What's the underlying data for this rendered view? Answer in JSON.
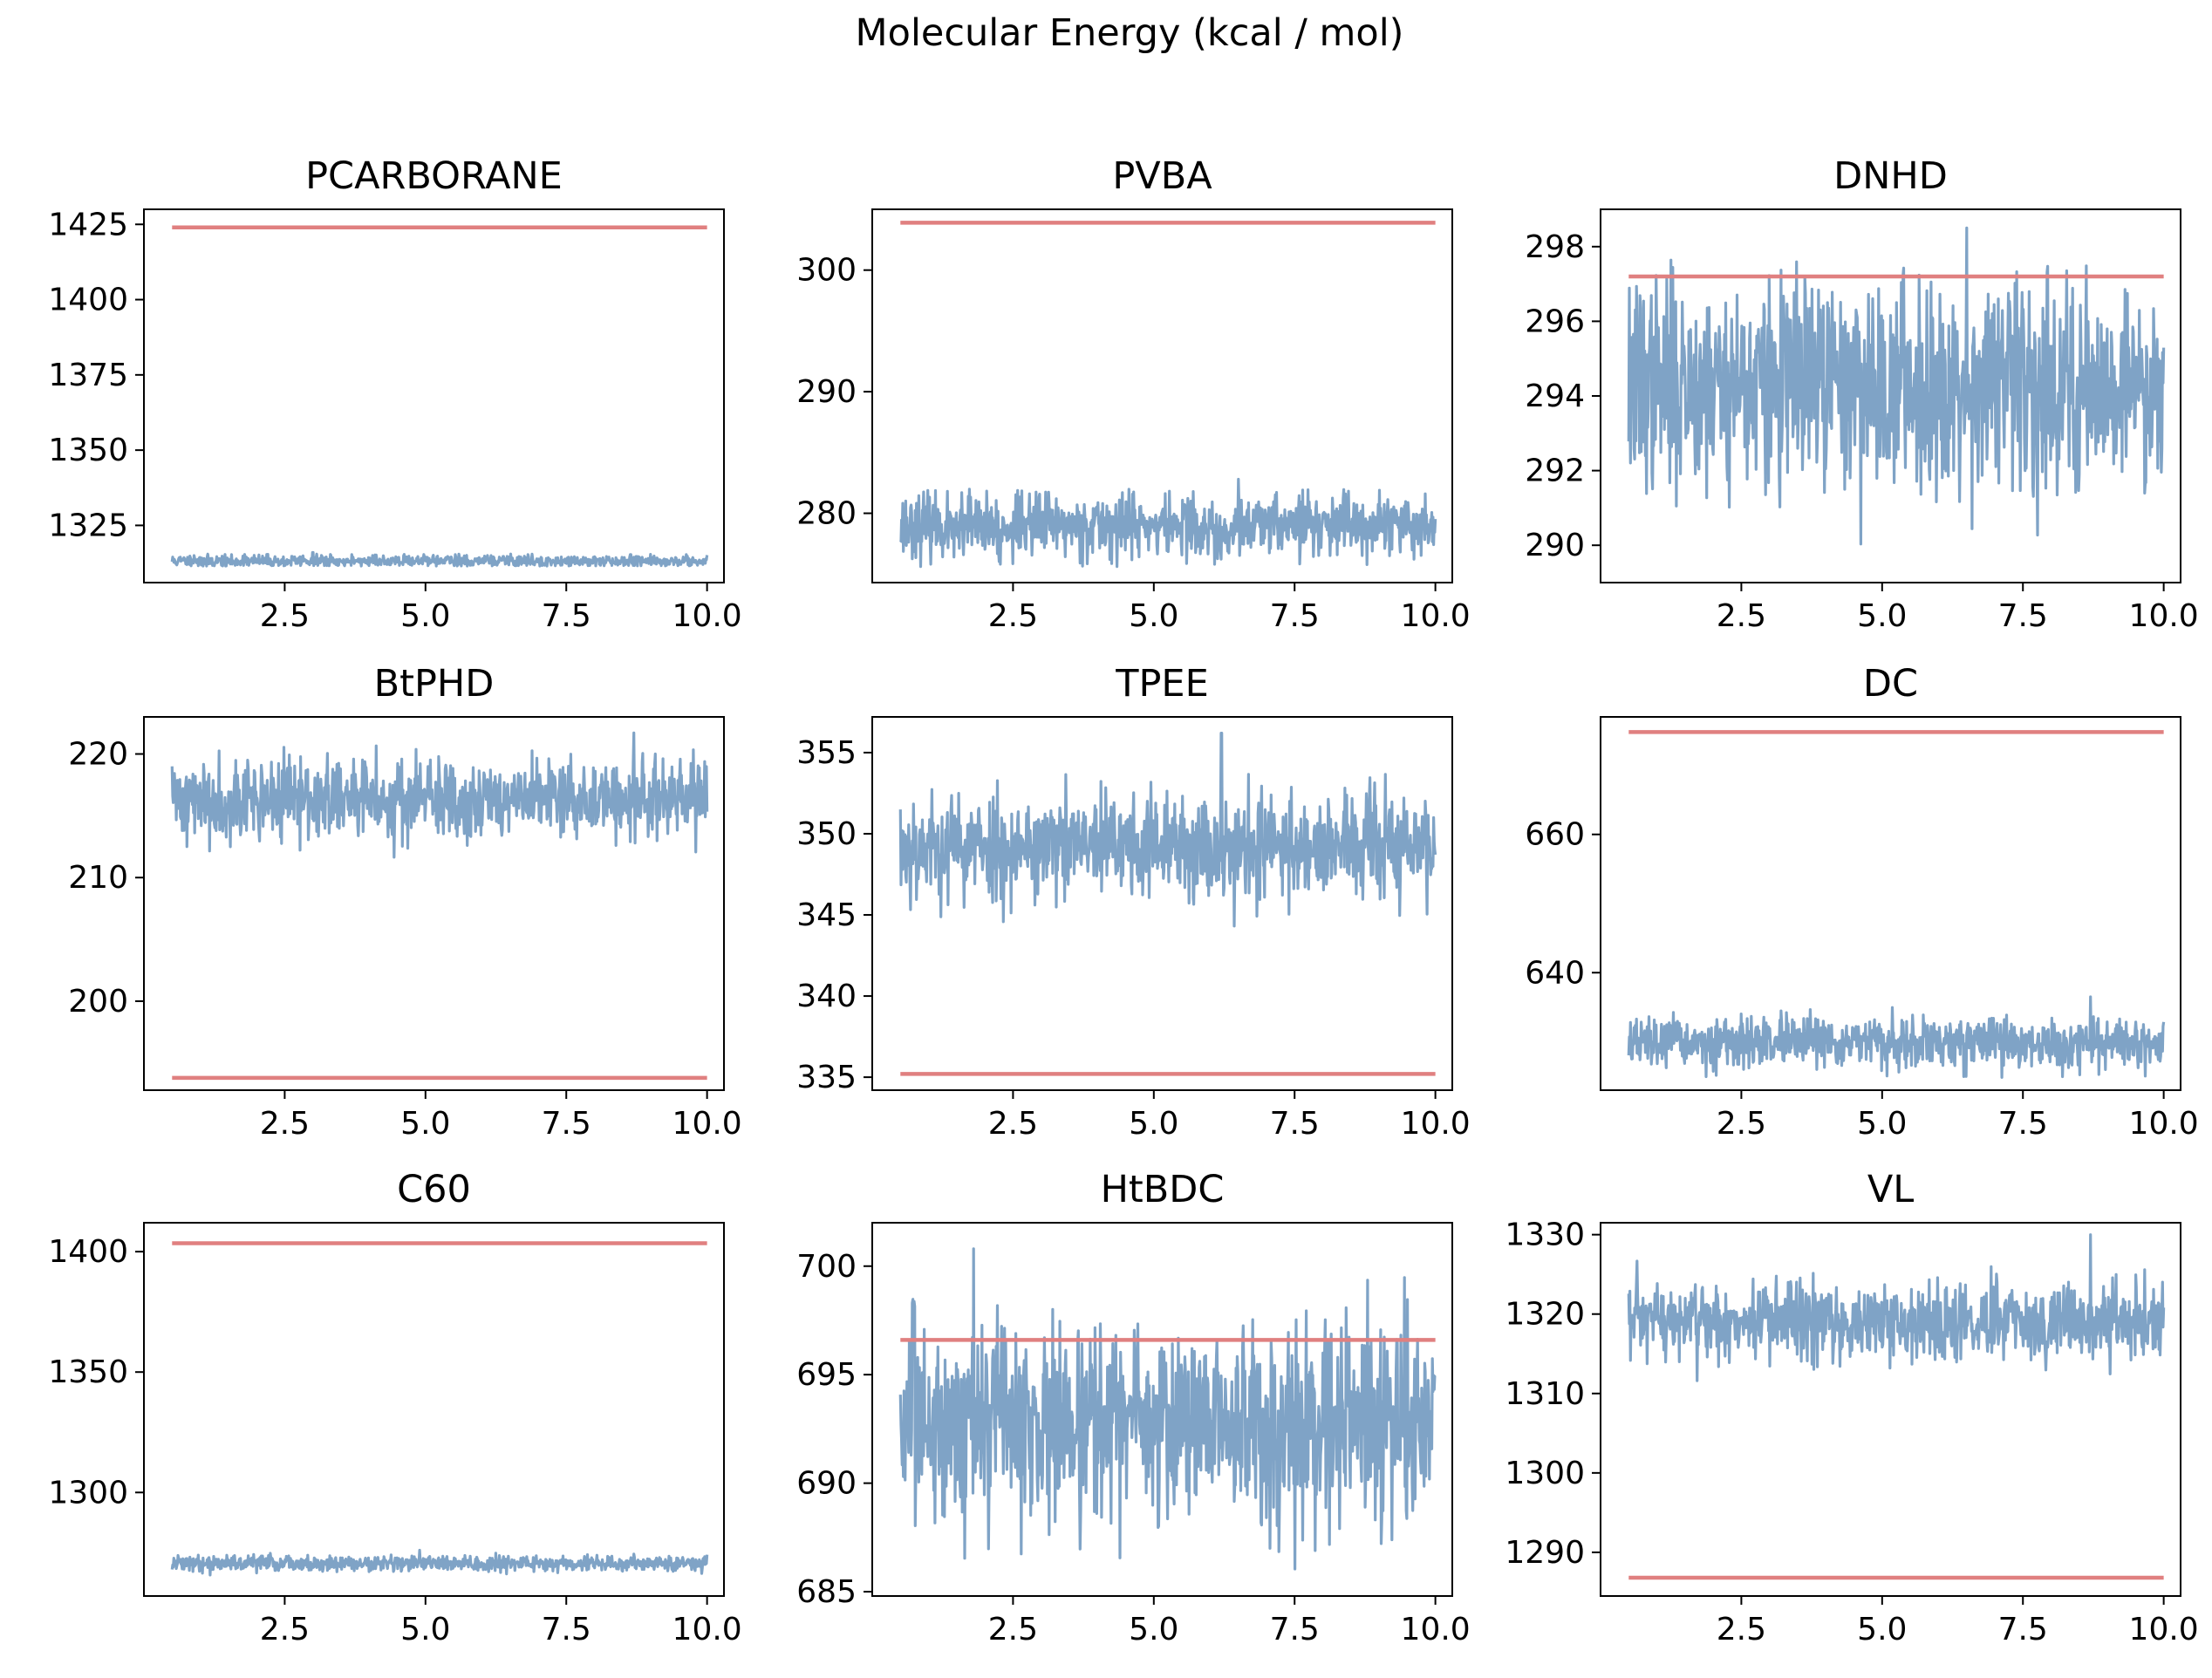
{
  "figure": {
    "title": "Molecular Energy (kcal / mol)",
    "background": "#ffffff",
    "trace_color": "#7fa3c6",
    "reference_color": "#e08080"
  },
  "chart_data": [
    {
      "type": "line",
      "title": "PCARBORANE",
      "xlabel": "",
      "ylabel": "",
      "xlim": [
        0.0,
        10.3
      ],
      "ylim": [
        1306,
        1430
      ],
      "xticks": [
        2.5,
        5.0,
        7.5,
        10.0
      ],
      "yticks": [
        1325,
        1350,
        1375,
        1400,
        1425
      ],
      "x_range": [
        0.5,
        10.0
      ],
      "series": [
        {
          "mean": 1313.2,
          "sd": 0.8,
          "min": 1311.5,
          "max": 1315.5,
          "peak_x": 3.0,
          "peak": 1316.0,
          "seed": 11
        }
      ],
      "reference_line": 1424
    },
    {
      "type": "line",
      "title": "PVBA",
      "xlabel": "",
      "ylabel": "",
      "xlim": [
        0.0,
        10.3
      ],
      "ylim": [
        274.3,
        305.0
      ],
      "xticks": [
        2.5,
        5.0,
        7.5,
        10.0
      ],
      "yticks": [
        280,
        290,
        300
      ],
      "x_range": [
        0.5,
        10.0
      ],
      "series": [
        {
          "mean": 279.0,
          "sd": 1.0,
          "min": 275.6,
          "max": 282.0,
          "peak_x": 6.5,
          "peak": 282.8,
          "seed": 23
        }
      ],
      "reference_line": 303.9
    },
    {
      "type": "line",
      "title": "DNHD",
      "xlabel": "",
      "ylabel": "",
      "xlim": [
        0.0,
        10.3
      ],
      "ylim": [
        289.0,
        299.0
      ],
      "xticks": [
        2.5,
        5.0,
        7.5,
        10.0
      ],
      "yticks": [
        290,
        292,
        294,
        296,
        298
      ],
      "x_range": [
        0.5,
        10.0
      ],
      "series": [
        {
          "mean": 294.3,
          "sd": 1.1,
          "min": 289.5,
          "max": 298.5,
          "peak_x": 6.5,
          "peak": 298.5,
          "seed": 37
        }
      ],
      "reference_line": 297.2
    },
    {
      "type": "line",
      "title": "BtPHD",
      "xlabel": "",
      "ylabel": "",
      "xlim": [
        0.0,
        10.3
      ],
      "ylim": [
        192.8,
        223.0
      ],
      "xticks": [
        2.5,
        5.0,
        7.5,
        10.0
      ],
      "yticks": [
        200,
        210,
        220
      ],
      "x_range": [
        0.5,
        10.0
      ],
      "series": [
        {
          "mean": 216.3,
          "sd": 1.3,
          "min": 211.0,
          "max": 221.5,
          "peak_x": 8.7,
          "peak": 221.7,
          "seed": 41
        }
      ],
      "reference_line": 193.8
    },
    {
      "type": "line",
      "title": "TPEE",
      "xlabel": "",
      "ylabel": "",
      "xlim": [
        0.0,
        10.3
      ],
      "ylim": [
        334.2,
        357.2
      ],
      "xticks": [
        2.5,
        5.0,
        7.5,
        10.0
      ],
      "yticks": [
        335,
        340,
        345,
        350,
        355
      ],
      "x_range": [
        0.5,
        10.0
      ],
      "series": [
        {
          "mean": 349.2,
          "sd": 1.3,
          "min": 344.2,
          "max": 354.2,
          "peak_x": 6.2,
          "peak": 356.2,
          "seed": 53
        }
      ],
      "reference_line": 335.2
    },
    {
      "type": "line",
      "title": "DC",
      "xlabel": "",
      "ylabel": "",
      "xlim": [
        0.0,
        10.3
      ],
      "ylim": [
        623.0,
        677.0
      ],
      "xticks": [
        2.5,
        5.0,
        7.5,
        10.0
      ],
      "yticks": [
        640,
        660
      ],
      "x_range": [
        0.5,
        10.0
      ],
      "series": [
        {
          "mean": 629.8,
          "sd": 1.4,
          "min": 624.8,
          "max": 635.0,
          "peak_x": 8.7,
          "peak": 636.5,
          "seed": 67
        }
      ],
      "reference_line": 674.8
    },
    {
      "type": "line",
      "title": "C60",
      "xlabel": "",
      "ylabel": "",
      "xlim": [
        0.0,
        10.3
      ],
      "ylim": [
        1257,
        1412
      ],
      "xticks": [
        2.5,
        5.0,
        7.5,
        10.0
      ],
      "yticks": [
        1300,
        1350,
        1400
      ],
      "x_range": [
        0.5,
        10.0
      ],
      "series": [
        {
          "mean": 1270.5,
          "sd": 1.3,
          "min": 1265.5,
          "max": 1275.0,
          "peak_x": 4.9,
          "peak": 1276.0,
          "seed": 79
        }
      ],
      "reference_line": 1403.5
    },
    {
      "type": "line",
      "title": "HtBDC",
      "xlabel": "",
      "ylabel": "",
      "xlim": [
        0.0,
        10.3
      ],
      "ylim": [
        684.8,
        702.0
      ],
      "xticks": [
        2.5,
        5.0,
        7.5,
        10.0
      ],
      "yticks": [
        685,
        690,
        695,
        700
      ],
      "x_range": [
        0.5,
        10.0
      ],
      "series": [
        {
          "mean": 692.8,
          "sd": 1.8,
          "min": 685.7,
          "max": 700.8,
          "peak_x": 1.8,
          "peak": 700.8,
          "seed": 83
        }
      ],
      "reference_line": 696.6
    },
    {
      "type": "line",
      "title": "VL",
      "xlabel": "",
      "ylabel": "",
      "xlim": [
        0.0,
        10.3
      ],
      "ylim": [
        1284.5,
        1331.5
      ],
      "xticks": [
        2.5,
        5.0,
        7.5,
        10.0
      ],
      "yticks": [
        1290,
        1300,
        1310,
        1320,
        1330
      ],
      "x_range": [
        0.5,
        10.0
      ],
      "series": [
        {
          "mean": 1319.0,
          "sd": 2.0,
          "min": 1306.5,
          "max": 1330.0,
          "peak_x": 8.7,
          "peak": 1330.0,
          "seed": 97
        }
      ],
      "reference_line": 1286.8
    }
  ]
}
